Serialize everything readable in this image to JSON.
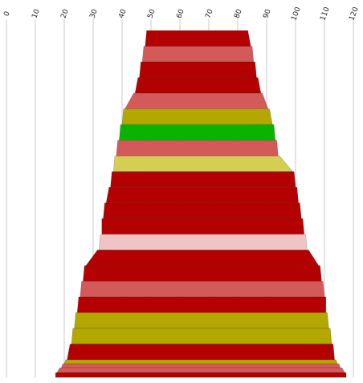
{
  "chart_data": {
    "type": "bar",
    "orientation": "horizontal-centered",
    "title": "",
    "xlabel": "",
    "ylabel": "",
    "xlim": [
      0,
      120
    ],
    "grid": true,
    "x_ticks": [
      "0",
      "10",
      "20",
      "30",
      "40",
      "50",
      "60",
      "70",
      "80",
      "90",
      "100",
      "110",
      "120"
    ],
    "colors": {
      "dark-red": "#b30000",
      "salmon": "#d45a5a",
      "olive": "#b3a800",
      "light-olive": "#d4cf52",
      "green": "#0ab300",
      "pink": "#f0c4c4",
      "grid": "#c8c8c8"
    },
    "bars": [
      {
        "start": 48.5,
        "end": 83.5,
        "color": "dark-red"
      },
      {
        "start": 47.5,
        "end": 85.0,
        "color": "salmon"
      },
      {
        "start": 46.5,
        "end": 86.0,
        "color": "dark-red"
      },
      {
        "start": 45.5,
        "end": 87.0,
        "color": "dark-red"
      },
      {
        "start": 44.0,
        "end": 88.5,
        "color": "salmon"
      },
      {
        "start": 40.5,
        "end": 91.0,
        "color": "olive"
      },
      {
        "start": 39.5,
        "end": 92.5,
        "color": "green"
      },
      {
        "start": 38.5,
        "end": 93.5,
        "color": "salmon"
      },
      {
        "start": 37.5,
        "end": 94.5,
        "color": "light-olive"
      },
      {
        "start": 36.5,
        "end": 99.5,
        "color": "dark-red"
      },
      {
        "start": 35.5,
        "end": 100.5,
        "color": "dark-red"
      },
      {
        "start": 34.0,
        "end": 101.5,
        "color": "dark-red"
      },
      {
        "start": 33.0,
        "end": 102.5,
        "color": "dark-red"
      },
      {
        "start": 32.5,
        "end": 103.5,
        "color": "pink"
      },
      {
        "start": 31.5,
        "end": 104.5,
        "color": "dark-red"
      },
      {
        "start": 27.0,
        "end": 108.5,
        "color": "dark-red"
      },
      {
        "start": 26.0,
        "end": 109.5,
        "color": "salmon"
      },
      {
        "start": 25.0,
        "end": 110.5,
        "color": "dark-red"
      },
      {
        "start": 24.0,
        "end": 111.0,
        "color": "olive"
      },
      {
        "start": 23.0,
        "end": 112.0,
        "color": "olive"
      },
      {
        "start": 22.0,
        "end": 113.0,
        "color": "dark-red"
      },
      {
        "start": 20.5,
        "end": 114.0,
        "color": "olive"
      },
      {
        "start": 19.5,
        "end": 115.0,
        "color": "salmon"
      },
      {
        "start": 18.5,
        "end": 116.0,
        "color": "salmon"
      },
      {
        "start": 17.0,
        "end": 117.5,
        "color": "dark-red"
      }
    ]
  }
}
